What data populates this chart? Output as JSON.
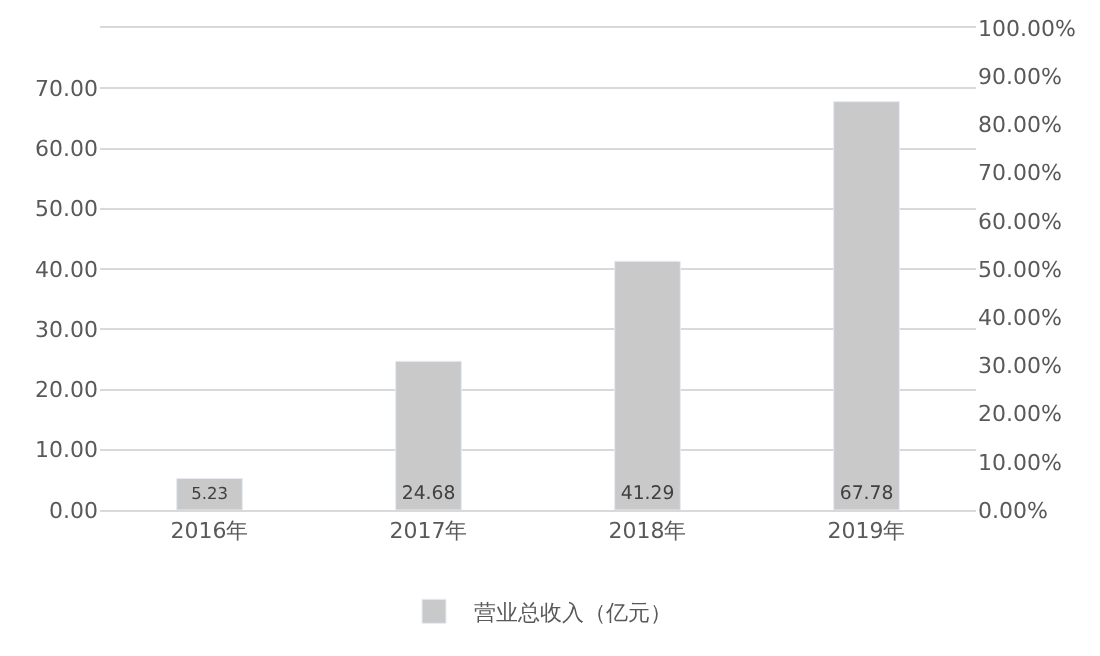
{
  "chart_data": {
    "type": "bar",
    "categories": [
      "2016年",
      "2017年",
      "2018年",
      "2019年"
    ],
    "series": [
      {
        "name": "营业总收入（亿元）",
        "color": "#c9c9c9",
        "values": [
          5.23,
          24.68,
          41.29,
          67.78
        ]
      }
    ],
    "ylim": [
      0,
      80
    ],
    "yticks": [
      {
        "value": 0,
        "label": "0.00"
      },
      {
        "value": 10,
        "label": "10.00"
      },
      {
        "value": 20,
        "label": "20.00"
      },
      {
        "value": 30,
        "label": "30.00"
      },
      {
        "value": 40,
        "label": "40.00"
      },
      {
        "value": 50,
        "label": "50.00"
      },
      {
        "value": 60,
        "label": "60.00"
      },
      {
        "value": 70,
        "label": "70.00"
      },
      {
        "value": 80,
        "label": null
      }
    ],
    "y2lim": [
      0,
      100
    ],
    "y2ticks": [
      {
        "value": 0,
        "label": "0.00%"
      },
      {
        "value": 10,
        "label": "10.00%"
      },
      {
        "value": 20,
        "label": "20.00%"
      },
      {
        "value": 30,
        "label": "30.00%"
      },
      {
        "value": 40,
        "label": "40.00%"
      },
      {
        "value": 50,
        "label": "50.00%"
      },
      {
        "value": 60,
        "label": "60.00%"
      },
      {
        "value": 70,
        "label": "70.00%"
      },
      {
        "value": 80,
        "label": "80.00%"
      },
      {
        "value": 90,
        "label": "90.00%"
      },
      {
        "value": 100,
        "label": "100.00%"
      }
    ],
    "data_labels": true,
    "grid": "y",
    "legend": "bottom"
  }
}
